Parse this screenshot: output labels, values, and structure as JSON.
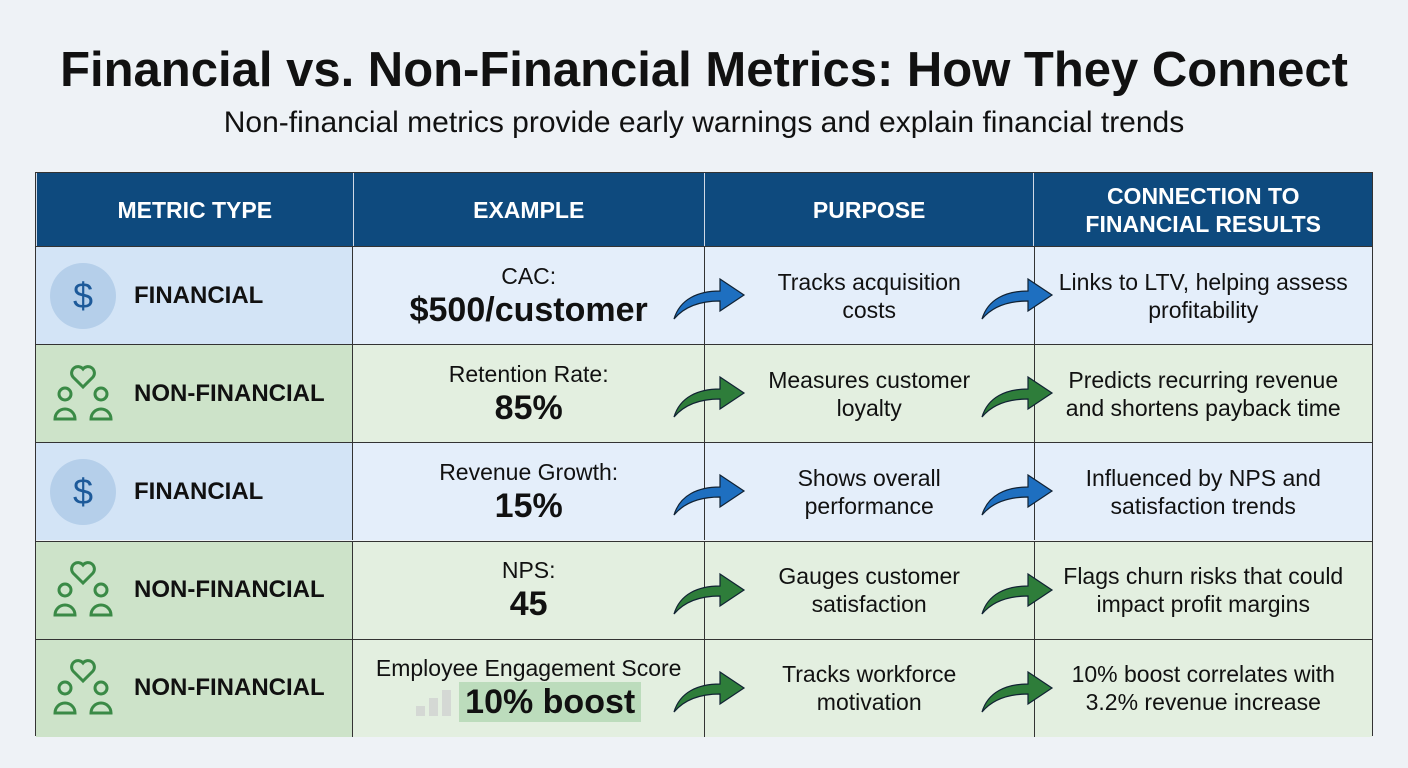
{
  "title": "Financial vs. Non-Financial Metrics: How They Connect",
  "subtitle": "Non-financial metrics provide early warnings and explain financial trends",
  "headers": [
    "METRIC TYPE",
    "EXAMPLE",
    "PURPOSE",
    "CONNECTION TO FINANCIAL RESULTS"
  ],
  "colors": {
    "header": "#0e4a7e",
    "financial_arrow": "#1e6fc0",
    "nonfinancial_arrow": "#2e7d3a"
  },
  "rows": [
    {
      "type": "FINANCIAL",
      "icon": "dollar-icon",
      "example_label": "CAC:",
      "example_value": "$500/customer",
      "purpose": "Tracks acquisition costs",
      "connection": "Links to LTV, helping assess profitability"
    },
    {
      "type": "NON-FINANCIAL",
      "icon": "people-heart-icon",
      "example_label": "Retention Rate:",
      "example_value": "85%",
      "purpose": "Measures customer loyalty",
      "connection": "Predicts recurring revenue and shortens payback time"
    },
    {
      "type": "FINANCIAL",
      "icon": "dollar-icon",
      "example_label": "Revenue Growth:",
      "example_value": "15%",
      "purpose": "Shows overall performance",
      "connection": "Influenced by NPS and satisfaction trends"
    },
    {
      "type": "NON-FINANCIAL",
      "icon": "people-heart-icon",
      "example_label": "NPS:",
      "example_value": "45",
      "purpose": "Gauges customer satisfaction",
      "connection": "Flags churn risks that could impact profit margins"
    },
    {
      "type": "NON-FINANCIAL",
      "icon": "people-heart-icon",
      "example_label": "Employee Engagement Score",
      "example_value": "10% boost",
      "purpose": "Tracks workforce motivation",
      "connection": "10% boost correlates with 3.2% revenue increase"
    }
  ]
}
